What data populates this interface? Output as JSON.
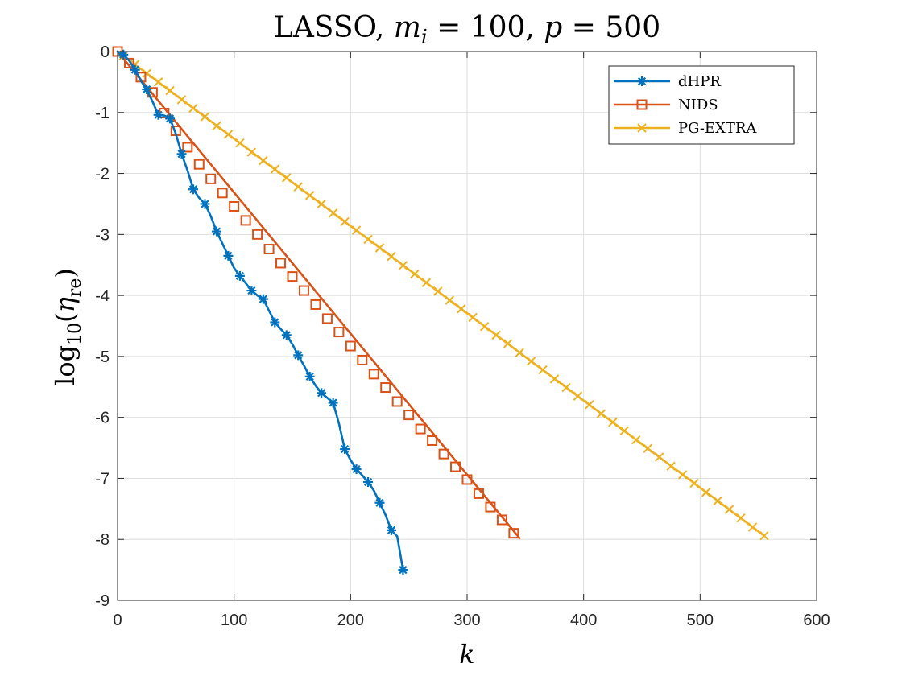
{
  "chart_data": {
    "type": "line",
    "title": "LASSO, m_i = 100, p = 500",
    "title_parts": {
      "lead": "LASSO, ",
      "m": "m",
      "i": "i",
      "eq1": " = 100, ",
      "p": "p",
      "eq2": " = 500"
    },
    "xlabel": "k",
    "ylabel": "log10(η_re)",
    "ylabel_parts": {
      "log": "log",
      "sub10": "10",
      "open": "(",
      "eta": "η",
      "re": "re",
      "close": ")"
    },
    "xlim": [
      0,
      600
    ],
    "ylim": [
      -9,
      0
    ],
    "xticks": [
      0,
      100,
      200,
      300,
      400,
      500,
      600
    ],
    "yticks": [
      0,
      -1,
      -2,
      -3,
      -4,
      -5,
      -6,
      -7,
      -8,
      -9
    ],
    "grid": true,
    "legend_position": "top-right",
    "series": [
      {
        "name": "dHPR",
        "color": "#0072BD",
        "marker": "asterisk",
        "x": [
          0,
          5,
          10,
          15,
          20,
          25,
          30,
          35,
          40,
          45,
          50,
          55,
          60,
          65,
          70,
          75,
          80,
          85,
          90,
          95,
          100,
          105,
          110,
          115,
          120,
          125,
          130,
          135,
          140,
          145,
          150,
          155,
          160,
          165,
          170,
          175,
          180,
          185,
          190,
          195,
          200,
          205,
          210,
          215,
          220,
          225,
          230,
          235,
          240,
          245
        ],
        "y": [
          0,
          -0.05,
          -0.15,
          -0.3,
          -0.48,
          -0.62,
          -0.82,
          -1.04,
          -1.05,
          -1.1,
          -1.35,
          -1.68,
          -1.95,
          -2.26,
          -2.4,
          -2.5,
          -2.7,
          -2.95,
          -3.15,
          -3.35,
          -3.55,
          -3.68,
          -3.8,
          -3.92,
          -4.0,
          -4.06,
          -4.25,
          -4.44,
          -4.55,
          -4.65,
          -4.8,
          -4.98,
          -5.15,
          -5.33,
          -5.48,
          -5.6,
          -5.68,
          -5.76,
          -6.1,
          -6.52,
          -6.7,
          -6.85,
          -6.95,
          -7.06,
          -7.2,
          -7.4,
          -7.6,
          -7.85,
          -7.95,
          -8.5
        ],
        "marker_x": [
          5,
          15,
          25,
          35,
          45,
          55,
          65,
          75,
          85,
          95,
          105,
          115,
          125,
          135,
          145,
          155,
          165,
          175,
          185,
          195,
          205,
          215,
          225,
          235,
          245
        ],
        "marker_y": [
          -0.05,
          -0.3,
          -0.62,
          -1.04,
          -1.1,
          -1.68,
          -2.26,
          -2.5,
          -2.95,
          -3.35,
          -3.68,
          -3.92,
          -4.06,
          -4.44,
          -4.65,
          -4.98,
          -5.33,
          -5.6,
          -5.76,
          -6.52,
          -6.85,
          -7.06,
          -7.4,
          -7.85,
          -8.5
        ]
      },
      {
        "name": "NIDS",
        "color": "#D95319",
        "marker": "square",
        "x": [
          0,
          345
        ],
        "y": [
          0,
          -7.98
        ],
        "marker_x": [
          0,
          10,
          20,
          30,
          40,
          50,
          60,
          70,
          80,
          90,
          100,
          110,
          120,
          130,
          140,
          150,
          160,
          170,
          180,
          190,
          200,
          210,
          220,
          230,
          240,
          250,
          260,
          270,
          280,
          290,
          300,
          310,
          320,
          330,
          340
        ],
        "marker_y": [
          0,
          -0.19,
          -0.42,
          -0.67,
          -1.01,
          -1.3,
          -1.57,
          -1.85,
          -2.09,
          -2.32,
          -2.54,
          -2.77,
          -3.0,
          -3.24,
          -3.47,
          -3.69,
          -3.92,
          -4.15,
          -4.38,
          -4.6,
          -4.83,
          -5.06,
          -5.29,
          -5.51,
          -5.74,
          -5.96,
          -6.19,
          -6.38,
          -6.6,
          -6.81,
          -7.02,
          -7.25,
          -7.47,
          -7.68,
          -7.9
        ]
      },
      {
        "name": "PG-EXTRA",
        "color": "#EDB120",
        "marker": "x",
        "x": [
          0,
          555
        ],
        "y": [
          0,
          -7.94
        ],
        "marker_x": [
          5,
          15,
          25,
          35,
          45,
          55,
          65,
          75,
          85,
          95,
          105,
          115,
          125,
          135,
          145,
          155,
          165,
          175,
          185,
          195,
          205,
          215,
          225,
          235,
          245,
          255,
          265,
          275,
          285,
          295,
          305,
          315,
          325,
          335,
          345,
          355,
          365,
          375,
          385,
          395,
          405,
          415,
          425,
          435,
          445,
          455,
          465,
          475,
          485,
          495,
          505,
          515,
          525,
          535,
          545,
          555
        ],
        "marker_y": [
          -0.07,
          -0.21,
          -0.36,
          -0.5,
          -0.64,
          -0.79,
          -0.93,
          -1.07,
          -1.22,
          -1.36,
          -1.5,
          -1.65,
          -1.79,
          -1.93,
          -2.07,
          -2.22,
          -2.36,
          -2.5,
          -2.65,
          -2.79,
          -2.93,
          -3.08,
          -3.22,
          -3.36,
          -3.51,
          -3.65,
          -3.79,
          -3.93,
          -4.08,
          -4.22,
          -4.36,
          -4.51,
          -4.65,
          -4.79,
          -4.94,
          -5.08,
          -5.22,
          -5.37,
          -5.51,
          -5.65,
          -5.79,
          -5.94,
          -6.08,
          -6.22,
          -6.37,
          -6.51,
          -6.65,
          -6.8,
          -6.94,
          -7.08,
          -7.23,
          -7.37,
          -7.51,
          -7.65,
          -7.8,
          -7.94
        ]
      }
    ]
  }
}
